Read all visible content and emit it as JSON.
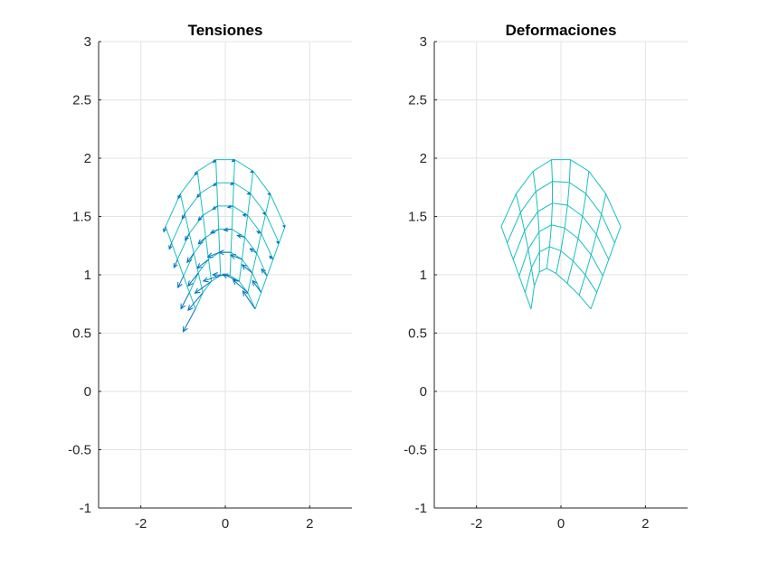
{
  "chart_data": [
    {
      "type": "line",
      "title": "Tensiones",
      "xlim": [
        -3,
        3
      ],
      "ylim": [
        -1,
        3
      ],
      "xticks": [
        "-2",
        "0",
        "2"
      ],
      "xtick_values": [
        -2,
        0,
        2
      ],
      "yticks": [
        "-1",
        "-0.5",
        "0",
        "0.5",
        "1",
        "1.5",
        "2",
        "2.5",
        "3"
      ],
      "ytick_values": [
        -1,
        -0.5,
        0,
        0.5,
        1,
        1.5,
        2,
        2.5,
        3
      ],
      "grid": true,
      "mesh": {
        "r_inner": 1,
        "r_outer": 2,
        "theta_deg": [
          45,
          135
        ],
        "radial_divisions": 5,
        "angular_divisions": 7,
        "deformed": false
      },
      "quiver": true,
      "colors": {
        "mesh": "#1ABFBF",
        "arrows": "#0072BD"
      }
    },
    {
      "type": "line",
      "title": "Deformaciones",
      "xlim": [
        -3,
        3
      ],
      "ylim": [
        -1,
        3
      ],
      "xticks": [
        "-2",
        "0",
        "2"
      ],
      "xtick_values": [
        -2,
        0,
        2
      ],
      "yticks": [
        "-1",
        "-0.5",
        "0",
        "0.5",
        "1",
        "1.5",
        "2",
        "2.5",
        "3"
      ],
      "ytick_values": [
        -1,
        -0.5,
        0,
        0.5,
        1,
        1.5,
        2,
        2.5,
        3
      ],
      "grid": true,
      "mesh": {
        "r_inner": 1,
        "r_outer": 2,
        "theta_deg": [
          45,
          135
        ],
        "radial_divisions": 5,
        "angular_divisions": 7,
        "deformed": true
      },
      "quiver": false,
      "colors": {
        "mesh": "#1ABFBF"
      }
    }
  ]
}
